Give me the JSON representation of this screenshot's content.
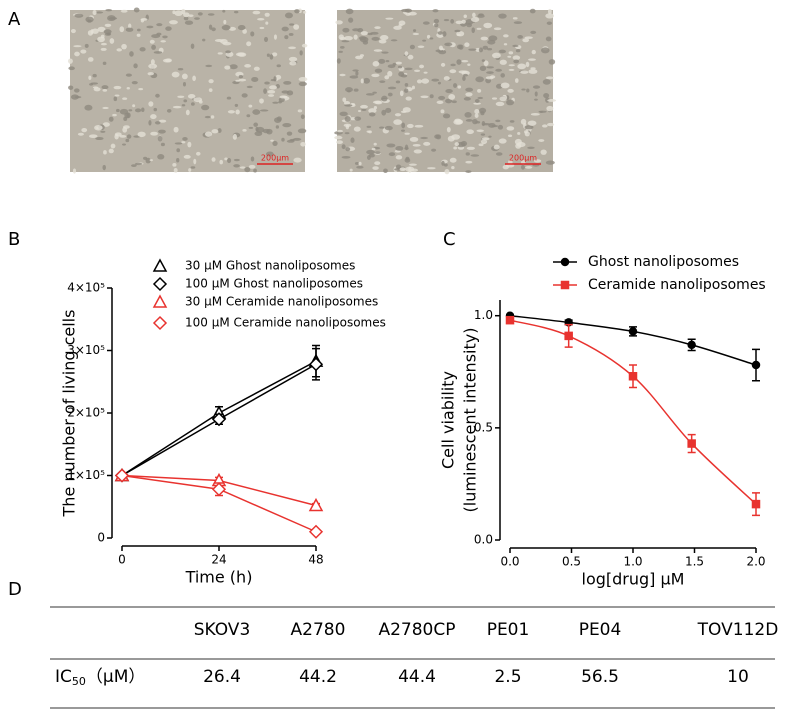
{
  "panel_labels": [
    "A",
    "B",
    "C",
    "D"
  ],
  "images": [
    {
      "scale_bar": "200μm"
    },
    {
      "scale_bar": "200μm"
    }
  ],
  "chart_data": [
    {
      "type": "line",
      "x": [
        0,
        24,
        48
      ],
      "xlim": [
        0,
        48
      ],
      "xticks": [
        0,
        24,
        48
      ],
      "ylim": [
        0,
        400000
      ],
      "yticks": [
        0,
        {
          "value": 100000,
          "label": "1×10⁵"
        },
        {
          "value": 200000,
          "label": "2×10⁵"
        },
        {
          "value": 300000,
          "label": "3×10⁵"
        },
        {
          "value": 400000,
          "label": "4×10⁵"
        }
      ],
      "xlabel": "Time (h)",
      "ylabel": "The number of living cells",
      "smooth": false,
      "series": [
        {
          "name": "30 μM Ghost nanoliposomes",
          "color": "#000000",
          "marker": "triangle",
          "values": [
            100000,
            200000,
            283000
          ],
          "errors": [
            0,
            10000,
            25000
          ]
        },
        {
          "name": "100 μM Ghost nanoliposomes",
          "color": "#000000",
          "marker": "diamond",
          "values": [
            100000,
            190000,
            278000
          ],
          "errors": [
            0,
            8000,
            25000
          ]
        },
        {
          "name": "30 μM Ceramide nanoliposomes",
          "color": "#e8332f",
          "marker": "triangle",
          "values": [
            100000,
            92000,
            52000
          ],
          "errors": [
            0,
            5000,
            3000
          ]
        },
        {
          "name": "100 μM Ceramide nanoliposomes",
          "color": "#e8332f",
          "marker": "diamond",
          "values": [
            100000,
            78000,
            10000
          ],
          "errors": [
            0,
            10000,
            2000
          ]
        }
      ]
    },
    {
      "type": "line",
      "x": [
        0,
        0.477,
        1,
        1.477,
        2
      ],
      "xlim": [
        0,
        2
      ],
      "xticks": [
        {
          "value": 0,
          "label": "0.0"
        },
        {
          "value": 0.5,
          "label": "0.5"
        },
        {
          "value": 1,
          "label": "1.0"
        },
        {
          "value": 1.5,
          "label": "1.5"
        },
        {
          "value": 2,
          "label": "2.0"
        }
      ],
      "ylim": [
        0,
        1.07
      ],
      "yticks": [
        {
          "value": 0,
          "label": "0.0"
        },
        0.5,
        {
          "value": 1,
          "label": "1.0"
        }
      ],
      "xlabel": "log[drug] μM",
      "ylabel": [
        "Cell  viability",
        "(luminescent intensity)"
      ],
      "smooth": true,
      "series": [
        {
          "name": "Ghost nanoliposomes",
          "color": "#000000",
          "marker": "circle",
          "values": [
            1.0,
            0.97,
            0.93,
            0.87,
            0.78
          ],
          "errors": [
            0.005,
            0.01,
            0.02,
            0.025,
            0.07
          ]
        },
        {
          "name": "Ceramide nanoliposomes",
          "color": "#e8332f",
          "marker": "square",
          "values": [
            0.98,
            0.91,
            0.73,
            0.43,
            0.16
          ],
          "errors": [
            0.01,
            0.05,
            0.05,
            0.04,
            0.05
          ]
        }
      ]
    }
  ],
  "table": {
    "columns": [
      "SKOV3",
      "A2780",
      "A2780CP",
      "PE01",
      "PE04",
      "TOV112D"
    ],
    "rows": [
      {
        "label": [
          "IC",
          "50",
          "（μM）"
        ],
        "values": [
          26.4,
          44.2,
          44.4,
          2.5,
          56.5,
          10
        ]
      }
    ]
  }
}
